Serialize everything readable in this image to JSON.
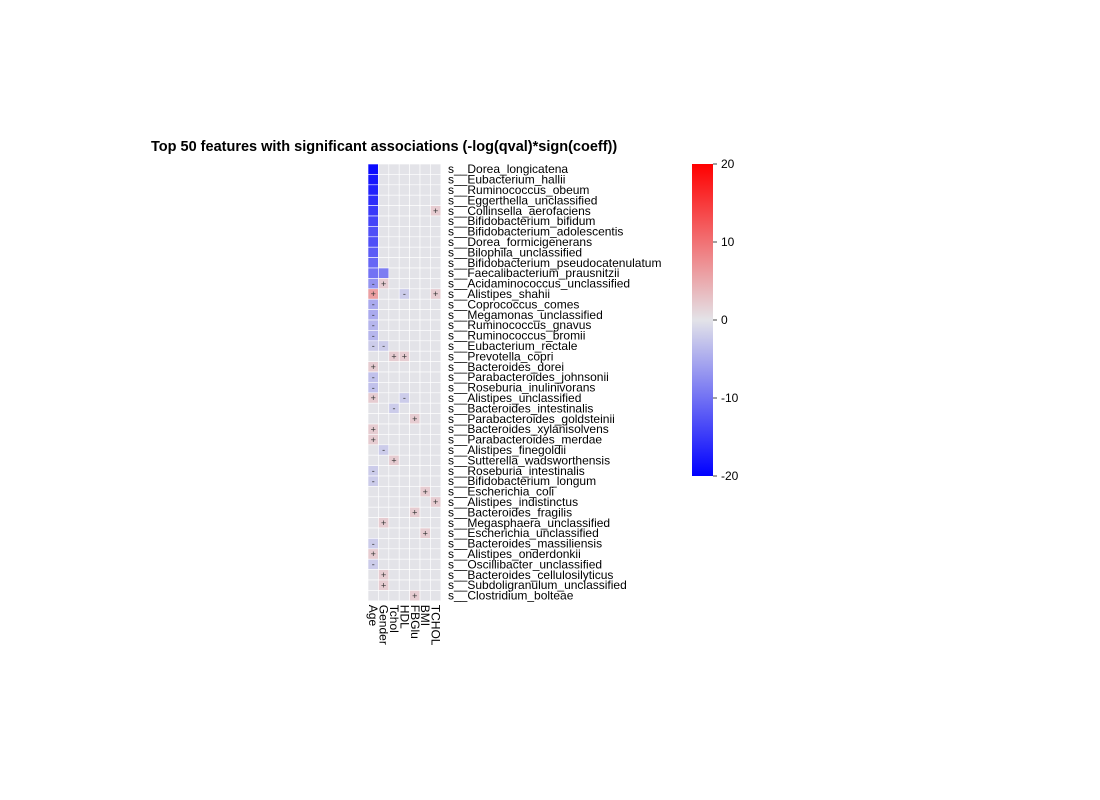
{
  "chart_data": {
    "type": "heatmap",
    "title": "Top 50 features with significant associations (-log(qval)*sign(coeff))",
    "columns": [
      "Age",
      "Gender",
      "Tchol",
      "HDL",
      "FBGlu",
      "BMI",
      "TCHOL"
    ],
    "rows": [
      "s__Dorea_longicatena",
      "s__Eubacterium_hallii",
      "s__Ruminococcus_obeum",
      "s__Eggerthella_unclassified",
      "s__Collinsella_aerofaciens",
      "s__Bifidobacterium_bifidum",
      "s__Bifidobacterium_adolescentis",
      "s__Dorea_formicigenerans",
      "s__Bilophila_unclassified",
      "s__Bifidobacterium_pseudocatenulatum",
      "s__Faecalibacterium_prausnitzii",
      "s__Acidaminococcus_unclassified",
      "s__Alistipes_shahii",
      "s__Coprococcus_comes",
      "s__Megamonas_unclassified",
      "s__Ruminococcus_gnavus",
      "s__Ruminococcus_bromii",
      "s__Eubacterium_rectale",
      "s__Prevotella_copri",
      "s__Bacteroides_dorei",
      "s__Parabacteroides_johnsonii",
      "s__Roseburia_inulinivorans",
      "s__Alistipes_unclassified",
      "s__Bacteroides_intestinalis",
      "s__Parabacteroides_goldsteinii",
      "s__Bacteroides_xylanisolvens",
      "s__Parabacteroides_merdae",
      "s__Alistipes_finegoldii",
      "s__Sutterella_wadsworthensis",
      "s__Roseburia_intestinalis",
      "s__Bifidobacterium_longum",
      "s__Escherichia_coli",
      "s__Alistipes_indistinctus",
      "s__Bacteroides_fragilis",
      "s__Megasphaera_unclassified",
      "s__Escherichia_unclassified",
      "s__Bacteroides_massiliensis",
      "s__Alistipes_onderdonkii",
      "s__Oscillibacter_unclassified",
      "s__Bacteroides_cellulosilyticus",
      "s__Subdoligranulum_unclassified",
      "s__Clostridium_bolteae"
    ],
    "values": [
      [
        -19,
        0,
        0,
        0,
        0,
        0,
        0
      ],
      [
        -18,
        0,
        0,
        0,
        0,
        0,
        0
      ],
      [
        -17,
        0,
        0,
        0,
        0,
        0,
        0
      ],
      [
        -16,
        0,
        0,
        0,
        0,
        0,
        0
      ],
      [
        -15,
        0,
        0,
        0,
        0,
        0,
        2
      ],
      [
        -14,
        0,
        0,
        0,
        0,
        0,
        0
      ],
      [
        -13,
        0,
        0,
        0,
        0,
        0,
        0
      ],
      [
        -13,
        0,
        0,
        0,
        0,
        0,
        0
      ],
      [
        -12,
        0,
        0,
        0,
        0,
        0,
        0
      ],
      [
        -11,
        0,
        0,
        0,
        0,
        0,
        0
      ],
      [
        -10,
        -9,
        0,
        0,
        0,
        0,
        0
      ],
      [
        -7,
        2,
        0,
        0,
        0,
        0,
        0
      ],
      [
        6,
        0,
        0,
        -2,
        0,
        0,
        2
      ],
      [
        -5,
        0,
        0,
        0,
        0,
        0,
        0
      ],
      [
        -5,
        0,
        0,
        0,
        0,
        0,
        0
      ],
      [
        -4,
        0,
        0,
        0,
        0,
        0,
        0
      ],
      [
        -4,
        0,
        0,
        0,
        0,
        0,
        0
      ],
      [
        -2,
        -2,
        0,
        0,
        0,
        0,
        0
      ],
      [
        0,
        0,
        2,
        2,
        0,
        0,
        0
      ],
      [
        2,
        0,
        0,
        0,
        0,
        0,
        0
      ],
      [
        -3,
        0,
        0,
        0,
        0,
        0,
        0
      ],
      [
        -3,
        0,
        0,
        0,
        0,
        0,
        0
      ],
      [
        2,
        0,
        0,
        -2,
        0,
        0,
        0
      ],
      [
        0,
        0,
        -2,
        0,
        0,
        0,
        0
      ],
      [
        0,
        0,
        0,
        0,
        2,
        0,
        0
      ],
      [
        2,
        0,
        0,
        0,
        0,
        0,
        0
      ],
      [
        2,
        0,
        0,
        0,
        0,
        0,
        0
      ],
      [
        0,
        -2,
        0,
        0,
        0,
        0,
        0
      ],
      [
        0,
        0,
        2,
        0,
        0,
        0,
        0
      ],
      [
        -2,
        0,
        0,
        0,
        0,
        0,
        0
      ],
      [
        -2,
        0,
        0,
        0,
        0,
        0,
        0
      ],
      [
        0,
        0,
        0,
        0,
        0,
        2,
        0
      ],
      [
        0,
        0,
        0,
        0,
        0,
        0,
        2
      ],
      [
        0,
        0,
        0,
        0,
        2,
        0,
        0
      ],
      [
        0,
        2,
        0,
        0,
        0,
        0,
        0
      ],
      [
        0,
        0,
        0,
        0,
        0,
        2,
        0
      ],
      [
        -2,
        0,
        0,
        0,
        0,
        0,
        0
      ],
      [
        2,
        0,
        0,
        0,
        0,
        0,
        0
      ],
      [
        -2,
        0,
        0,
        0,
        0,
        0,
        0
      ],
      [
        0,
        2,
        0,
        0,
        0,
        0,
        0
      ],
      [
        0,
        2,
        0,
        0,
        0,
        0,
        0
      ],
      [
        0,
        0,
        0,
        0,
        2,
        0,
        0
      ]
    ],
    "scale": {
      "min": -20,
      "max": 20,
      "low_color": "#0000ff",
      "mid_color": "#e3e3e8",
      "high_color": "#ff0000"
    },
    "legend_ticks": [
      20,
      10,
      0,
      -10,
      -20
    ],
    "legend_placement": "right",
    "marks": {
      "positive": "+",
      "negative": "-"
    }
  }
}
